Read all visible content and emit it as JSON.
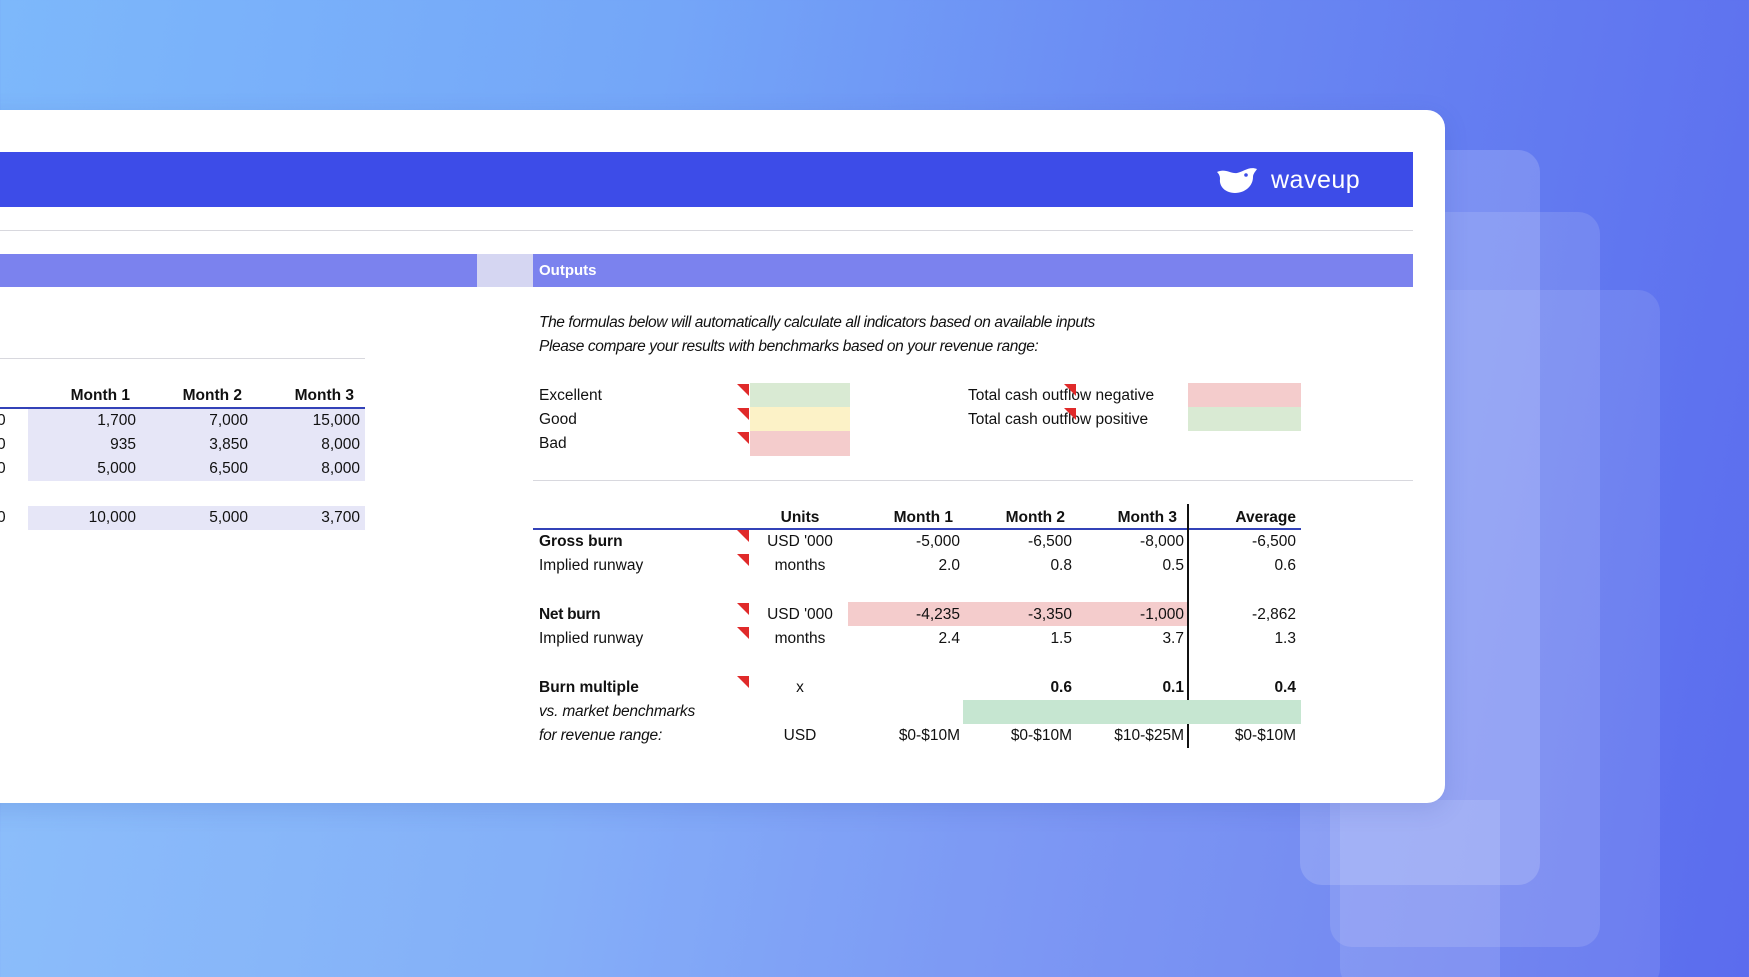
{
  "brand": {
    "name": "waveup",
    "icon": "bird-icon"
  },
  "outputs": {
    "section_title": "Outputs",
    "note_line1": "The formulas below will automatically calculate all indicators based on available inputs",
    "note_line2": "Please compare your results with benchmarks based on your revenue range:",
    "legend": [
      {
        "label": "Excellent",
        "color": "#d9ead3"
      },
      {
        "label": "Good",
        "color": "#fcf2c7"
      },
      {
        "label": "Bad",
        "color": "#f4cccc"
      }
    ],
    "cash_legend": [
      {
        "label": "Total cash outflow negative",
        "color": "#f4cccc"
      },
      {
        "label": "Total cash outflow positive",
        "color": "#d9ead3"
      }
    ],
    "table": {
      "headers": {
        "units": "Units",
        "m1": "Month 1",
        "m2": "Month 2",
        "m3": "Month 3",
        "avg": "Average"
      },
      "gross_burn": {
        "label": "Gross burn",
        "units": "USD '000",
        "m1": "-5,000",
        "m2": "-6,500",
        "m3": "-8,000",
        "avg": "-6,500"
      },
      "implied_runway_1": {
        "label": "Implied runway",
        "units": "months",
        "m1": "2.0",
        "m2": "0.8",
        "m3": "0.5",
        "avg": "0.6"
      },
      "net_burn": {
        "label": "Net burn",
        "units": "USD '000",
        "m1": "-4,235",
        "m2": "-3,350",
        "m3": "-1,000",
        "avg": "-2,862"
      },
      "implied_runway_2": {
        "label": "Implied runway",
        "units": "months",
        "m1": "2.4",
        "m2": "1.5",
        "m3": "3.7",
        "avg": "1.3"
      },
      "burn_multiple": {
        "label": "Burn multiple",
        "units": "x",
        "m2": "0.6",
        "m3": "0.1",
        "avg": "0.4"
      },
      "benchmarks_label1": "vs. market benchmarks",
      "benchmarks_label2": "for revenue range:",
      "revenue_range": {
        "units": "USD",
        "m1": "$0-$10M",
        "m2": "$0-$10M",
        "m3": "$10-$25M",
        "avg": "$0-$10M"
      }
    }
  },
  "inputs": {
    "headers": {
      "m1": "Month 1",
      "m2": "Month 2",
      "m3": "Month 3"
    },
    "rows": [
      {
        "m1": "1,700",
        "m2": "7,000",
        "m3": "15,000"
      },
      {
        "m1": "935",
        "m2": "3,850",
        "m3": "8,000"
      },
      {
        "m1": "5,000",
        "m2": "6,500",
        "m3": "8,000"
      },
      {
        "m1": "10,000",
        "m2": "5,000",
        "m3": "3,700"
      }
    ],
    "edge_digit": "0"
  }
}
